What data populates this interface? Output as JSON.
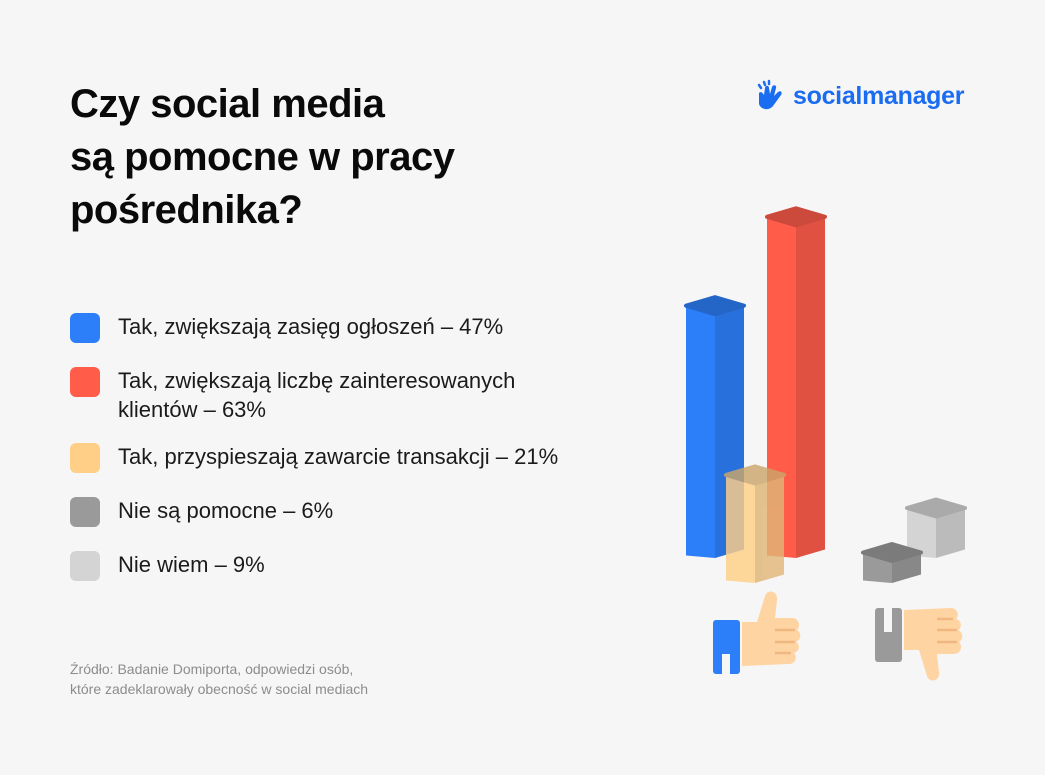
{
  "title_lines": [
    "Czy social media",
    "są pomocne w pracy",
    "pośrednika?"
  ],
  "brand": {
    "name": "socialmanager",
    "color": "#1a6cf0",
    "icon": "hand-wave-icon"
  },
  "legend": [
    {
      "label": "Tak, zwiększają zasięg ogłoszeń – 47%",
      "color": "#2d7ff9"
    },
    {
      "label_lines": [
        "Tak, zwiększają liczbę zainteresowanych",
        "klientów – 63%"
      ],
      "color": "#ff5c4a"
    },
    {
      "label": "Tak, przyspieszają zawarcie transakcji – 21%",
      "color": "#ffcf87"
    },
    {
      "label": "Nie są pomocne – 6%",
      "color": "#9a9a9a"
    },
    {
      "label": "Nie wiem – 9%",
      "color": "#d4d4d4"
    }
  ],
  "source_lines": [
    "Źródło: Badanie Domiporta, odpowiedzi osób,",
    "które zadeklarowały obecność w social mediach"
  ],
  "icons": [
    "thumbs-up-icon",
    "thumbs-down-icon"
  ],
  "chart_data": {
    "type": "bar",
    "categories": [
      "Tak, zwiększają zasięg ogłoszeń",
      "Tak, zwiększają liczbę zainteresowanych klientów",
      "Tak, przyspieszają zawarcie transakcji",
      "Nie są pomocne",
      "Nie wiem"
    ],
    "values": [
      47,
      63,
      21,
      6,
      9
    ],
    "unit": "%",
    "colors": [
      "#2d7ff9",
      "#ff5c4a",
      "#ffcf87",
      "#9a9a9a",
      "#d4d4d4"
    ],
    "style": "3d-prism",
    "title": "",
    "xlabel": "",
    "ylabel": "",
    "grid": false,
    "legend": "left"
  }
}
